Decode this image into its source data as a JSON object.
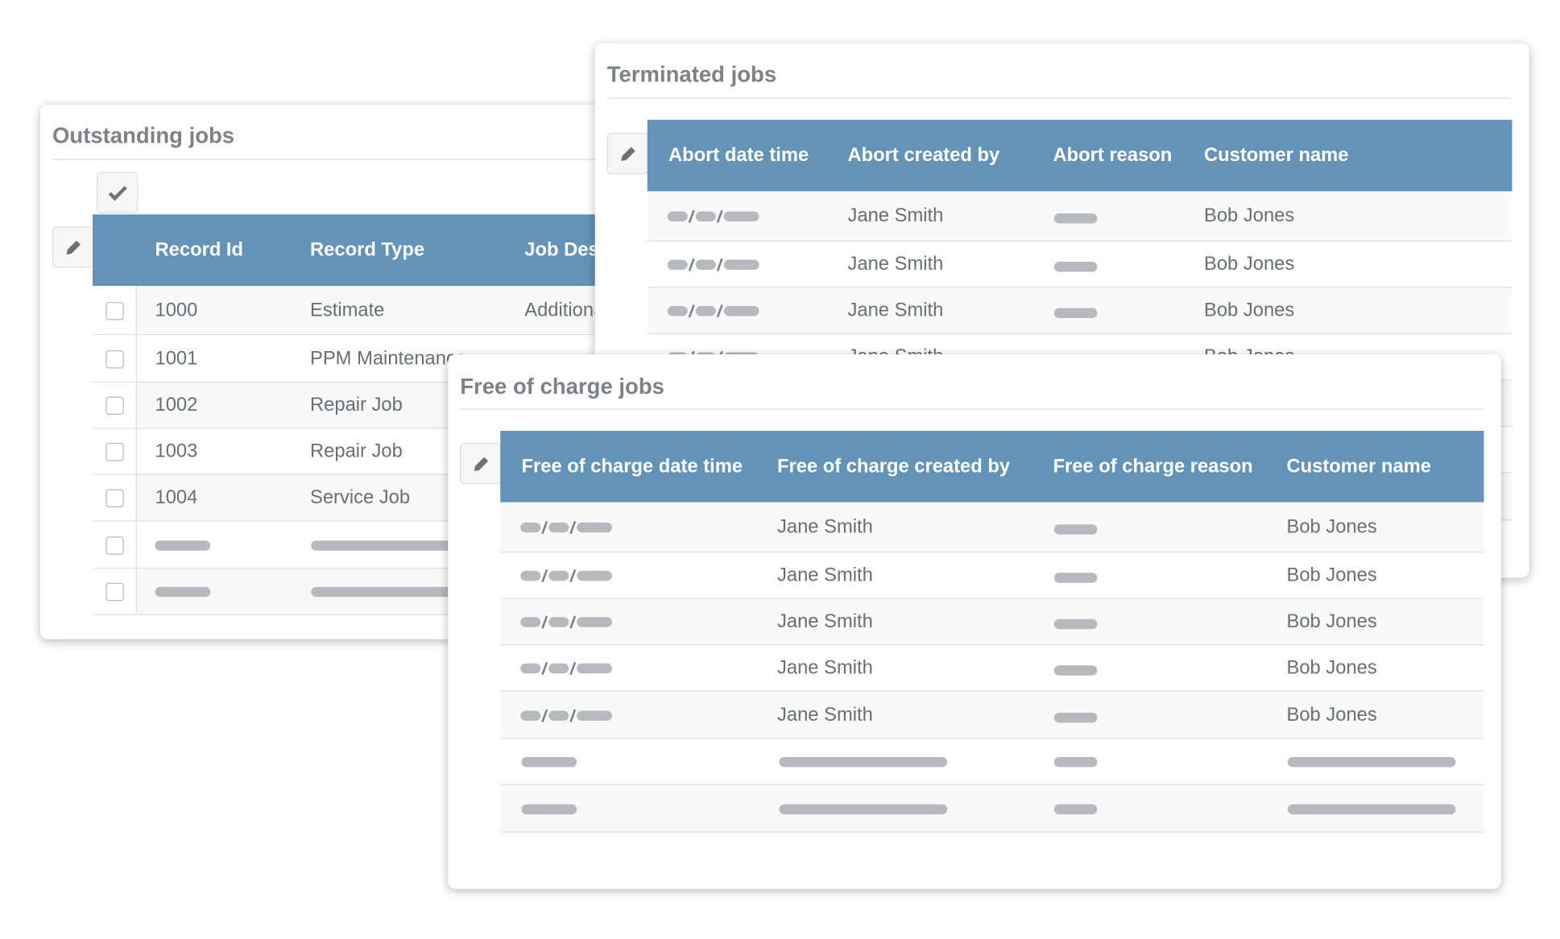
{
  "outstanding": {
    "title": "Outstanding jobs",
    "columns": [
      "Record Id",
      "Record Type",
      "Job Description"
    ],
    "rows": [
      [
        "1000",
        "Estimate",
        "Additional"
      ],
      [
        "1001",
        "PPM Maintenance"
      ],
      [
        "1002",
        "Repair Job"
      ],
      [
        "1003",
        "Repair Job"
      ],
      [
        "1004",
        "Service Job"
      ]
    ]
  },
  "terminated": {
    "title": "Terminated jobs",
    "columns": [
      "Abort date time",
      "Abort created by",
      "Abort reason",
      "Customer name"
    ],
    "rows": [
      [
        "Jane Smith",
        "Bob Jones"
      ],
      [
        "Jane Smith",
        "Bob Jones"
      ],
      [
        "Jane Smith",
        "Bob Jones"
      ],
      [
        "Jane Smith",
        "Bob Jones"
      ]
    ]
  },
  "free_of_charge": {
    "title": "Free of charge jobs",
    "columns": [
      "Free of charge date time",
      "Free of charge created by",
      "Free of charge reason",
      "Customer name"
    ],
    "rows": [
      [
        "Jane Smith",
        "Bob Jones"
      ],
      [
        "Jane Smith",
        "Bob Jones"
      ],
      [
        "Jane Smith",
        "Bob Jones"
      ],
      [
        "Jane Smith",
        "Bob Jones"
      ],
      [
        "Jane Smith",
        "Bob Jones"
      ]
    ]
  }
}
